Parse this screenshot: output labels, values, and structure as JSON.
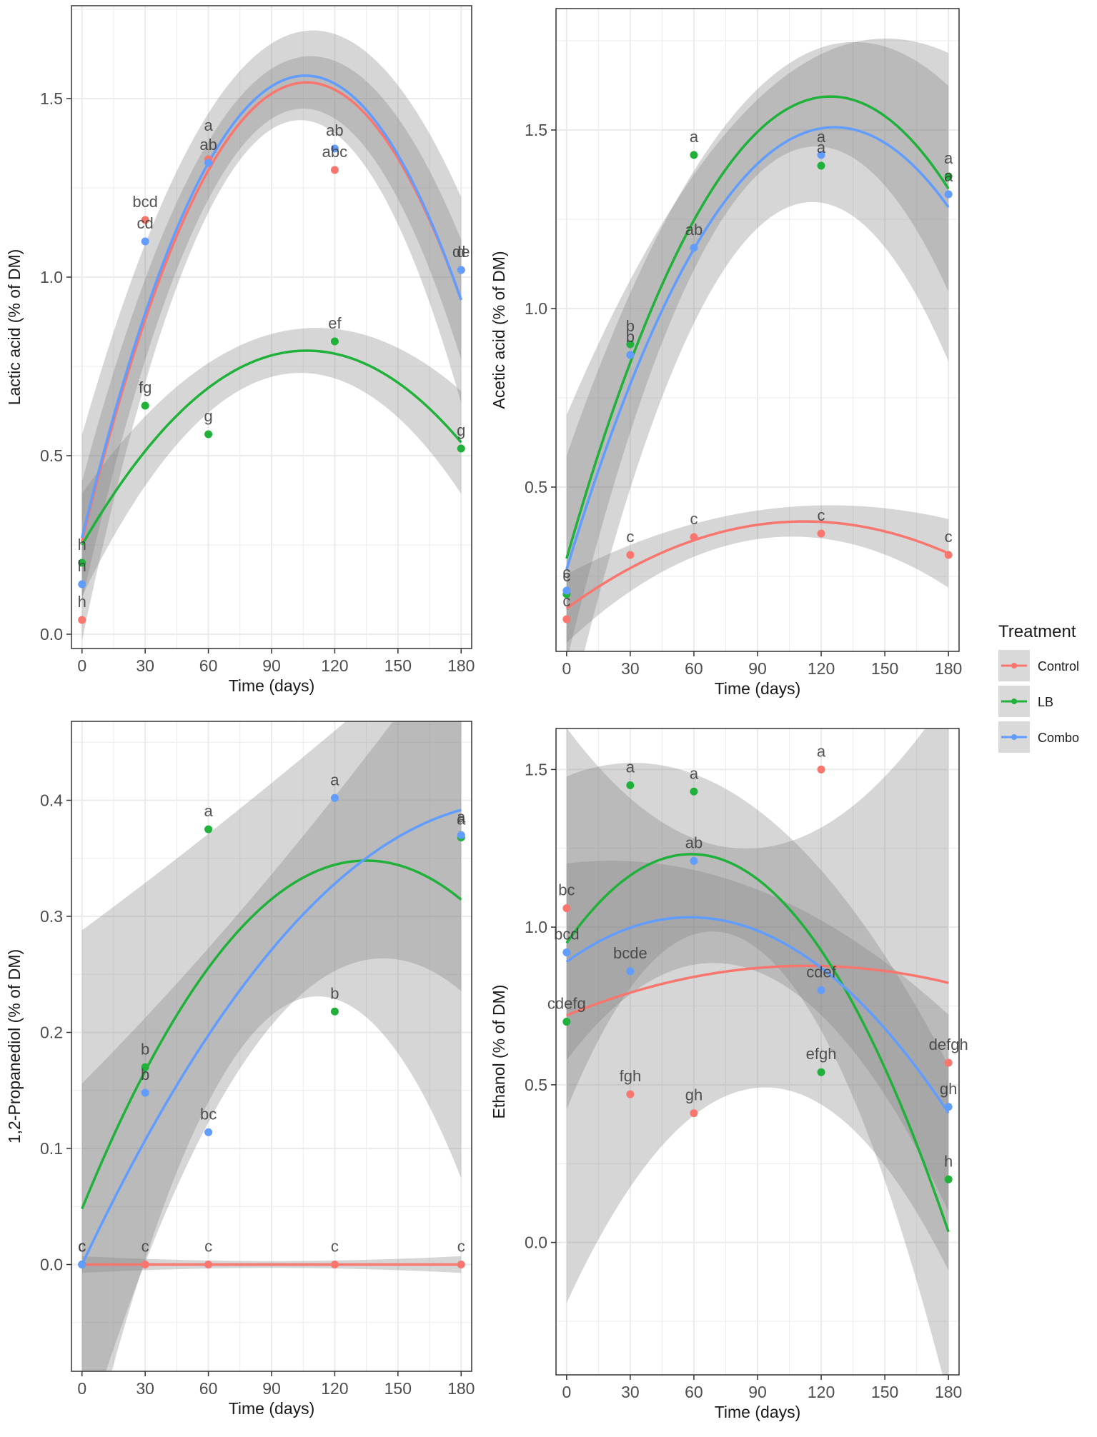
{
  "colors": {
    "Control": "#F8766D",
    "LB": "#1FB13A",
    "Combo": "#619CFF",
    "band": "#7f7f7f",
    "grid": "#EBEBEB",
    "panel_border": "#333333"
  },
  "legend": {
    "title": "Treatment",
    "entries": [
      "Control",
      "LB",
      "Combo"
    ]
  },
  "chart_data": [
    {
      "type": "scatter",
      "panel": "lactic",
      "xlabel": "Time (days)",
      "ylabel": "Lactic acid (% of DM)",
      "xlim": [
        -5,
        185
      ],
      "ylim": [
        -0.04,
        1.76
      ],
      "x_ticks": [
        0,
        30,
        60,
        90,
        120,
        150,
        180
      ],
      "x_tick_labels": [
        "0",
        "30",
        "60",
        "90",
        "120",
        "150",
        "180"
      ],
      "y_ticks": [
        0,
        0.5,
        1,
        1.5
      ],
      "y_tick_labels": [
        "0.0",
        "0.5",
        "1.0",
        "1.5"
      ],
      "series": [
        {
          "name": "Control",
          "x": [
            0,
            30,
            60,
            120,
            180
          ],
          "values": [
            0.04,
            1.16,
            1.33,
            1.3,
            1.02
          ],
          "letters": [
            "h",
            "bcd",
            "",
            "abc",
            "d"
          ],
          "fit": [
            0.26,
            0.0241,
            -0.000113
          ],
          "band": 0.07
        },
        {
          "name": "LB",
          "x": [
            0,
            30,
            60,
            120,
            180
          ],
          "values": [
            0.2,
            0.64,
            0.56,
            0.82,
            0.52
          ],
          "letters": [
            "h",
            "fg",
            "g",
            "ef",
            "g"
          ],
          "fit": [
            0.25,
            0.0102,
            -4.78e-05
          ],
          "band": 0.06
        },
        {
          "name": "Combo",
          "x": [
            0,
            30,
            60,
            120,
            180
          ],
          "values": [
            0.14,
            1.1,
            1.32,
            1.36,
            1.02
          ],
          "letters": [
            "h",
            "cd",
            "ab",
            "ab",
            "de"
          ],
          "fit": [
            0.27,
            0.0244,
            -0.000115
          ],
          "band": 0.12
        }
      ],
      "extra_labels": [
        {
          "x": 60,
          "y": 1.33,
          "text": "a",
          "series": "Control"
        }
      ]
    },
    {
      "type": "scatter",
      "panel": "acetic",
      "xlabel": "Time (days)",
      "ylabel": "Acetic acid (% of DM)",
      "xlim": [
        -5,
        185
      ],
      "ylim": [
        0.04,
        1.84
      ],
      "x_ticks": [
        0,
        30,
        60,
        90,
        120,
        150,
        180
      ],
      "x_tick_labels": [
        "0",
        "30",
        "60",
        "90",
        "120",
        "150",
        "180"
      ],
      "y_ticks": [
        0.5,
        1,
        1.5
      ],
      "y_tick_labels": [
        "0.5",
        "1.0",
        "1.5"
      ],
      "series": [
        {
          "name": "Control",
          "x": [
            0,
            30,
            60,
            120,
            180
          ],
          "values": [
            0.13,
            0.31,
            0.36,
            0.37,
            0.31
          ],
          "letters": [
            "c",
            "c",
            "c",
            "c",
            "c"
          ],
          "fit": [
            0.16,
            0.00435,
            -1.94e-05
          ],
          "band": 0.04
        },
        {
          "name": "LB",
          "x": [
            0,
            30,
            60,
            120,
            180
          ],
          "values": [
            0.2,
            0.9,
            1.43,
            1.4,
            1.37
          ],
          "letters": [
            "c",
            "b",
            "a",
            "a",
            "a"
          ],
          "fit": [
            0.3,
            0.0208,
            -8.36e-05
          ],
          "band": 0.12
        },
        {
          "name": "Combo",
          "x": [
            0,
            30,
            60,
            120,
            180
          ],
          "values": [
            0.21,
            0.87,
            1.17,
            1.43,
            1.32
          ],
          "letters": [
            "c",
            "b",
            "ab",
            "a",
            "a"
          ],
          "fit": [
            0.27,
            0.0196,
            -7.76e-05
          ],
          "band": 0.18
        }
      ]
    },
    {
      "type": "scatter",
      "panel": "propanediol",
      "xlabel": "Time (days)",
      "ylabel": "1,2-Propanediol (% of DM)",
      "xlim": [
        -5,
        185
      ],
      "ylim": [
        -0.092,
        0.468
      ],
      "x_ticks": [
        0,
        30,
        60,
        90,
        120,
        150,
        180
      ],
      "x_tick_labels": [
        "0",
        "30",
        "60",
        "90",
        "120",
        "150",
        "180"
      ],
      "y_ticks": [
        0,
        0.1,
        0.2,
        0.3,
        0.4
      ],
      "y_tick_labels": [
        "0.0",
        "0.1",
        "0.2",
        "0.3",
        "0.4"
      ],
      "series": [
        {
          "name": "Control",
          "x": [
            0,
            30,
            60,
            120,
            180
          ],
          "values": [
            0,
            0,
            0,
            0,
            0
          ],
          "letters": [
            "c",
            "c",
            "c",
            "c",
            "c"
          ],
          "fit": [
            0,
            0,
            0
          ],
          "band": 0.003
        },
        {
          "name": "LB",
          "x": [
            0,
            30,
            60,
            120,
            180
          ],
          "values": [
            0,
            0.17,
            0.375,
            0.218,
            0.368
          ],
          "letters": [
            "c",
            "b",
            "a",
            "b",
            "a"
          ],
          "fit": [
            0.048,
            0.00445,
            -1.65e-05
          ],
          "band": 0.1
        },
        {
          "name": "Combo",
          "x": [
            0,
            30,
            60,
            120,
            180
          ],
          "values": [
            0,
            0.148,
            0.114,
            0.402,
            0.37
          ],
          "letters": [
            "c",
            "b",
            "bc",
            "a",
            "a"
          ],
          "fit": [
            0.0,
            0.00385,
            -9.3e-06
          ],
          "band": 0.065
        }
      ]
    },
    {
      "type": "scatter",
      "panel": "ethanol",
      "xlabel": "Time (days)",
      "ylabel": "Ethanol (% of DM)",
      "xlim": [
        -5,
        185
      ],
      "ylim": [
        -0.42,
        1.63
      ],
      "x_ticks": [
        0,
        30,
        60,
        90,
        120,
        150,
        180
      ],
      "x_tick_labels": [
        "0",
        "30",
        "60",
        "90",
        "120",
        "150",
        "180"
      ],
      "y_ticks": [
        0,
        0.5,
        1,
        1.5
      ],
      "y_tick_labels": [
        "0.0",
        "0.5",
        "1.0",
        "1.5"
      ],
      "series": [
        {
          "name": "Control",
          "x": [
            0,
            30,
            60,
            120,
            180
          ],
          "values": [
            1.06,
            0.47,
            0.41,
            1.5,
            0.57
          ],
          "letters": [
            "bc",
            "fgh",
            "gh",
            "a",
            "defgh"
          ],
          "fit": [
            0.72,
            0.00277,
            -1.22e-05
          ],
          "band": 0.38
        },
        {
          "name": "LB",
          "x": [
            0,
            30,
            60,
            120,
            180
          ],
          "values": [
            0.7,
            1.45,
            1.43,
            0.54,
            0.2
          ],
          "letters": [
            "cdefg",
            "a",
            "a",
            "efgh",
            "h"
          ],
          "fit": [
            0.95,
            0.00958,
            -8.15e-05
          ],
          "band": 0.22
        },
        {
          "name": "Combo",
          "x": [
            0,
            30,
            60,
            120,
            180
          ],
          "values": [
            0.92,
            0.86,
            1.21,
            0.8,
            0.43
          ],
          "letters": [
            "bcd",
            "bcde",
            "ab",
            "cdef",
            "gh"
          ],
          "fit": [
            0.89,
            0.00486,
            -4.18e-05
          ],
          "band": 0.13
        }
      ]
    }
  ]
}
